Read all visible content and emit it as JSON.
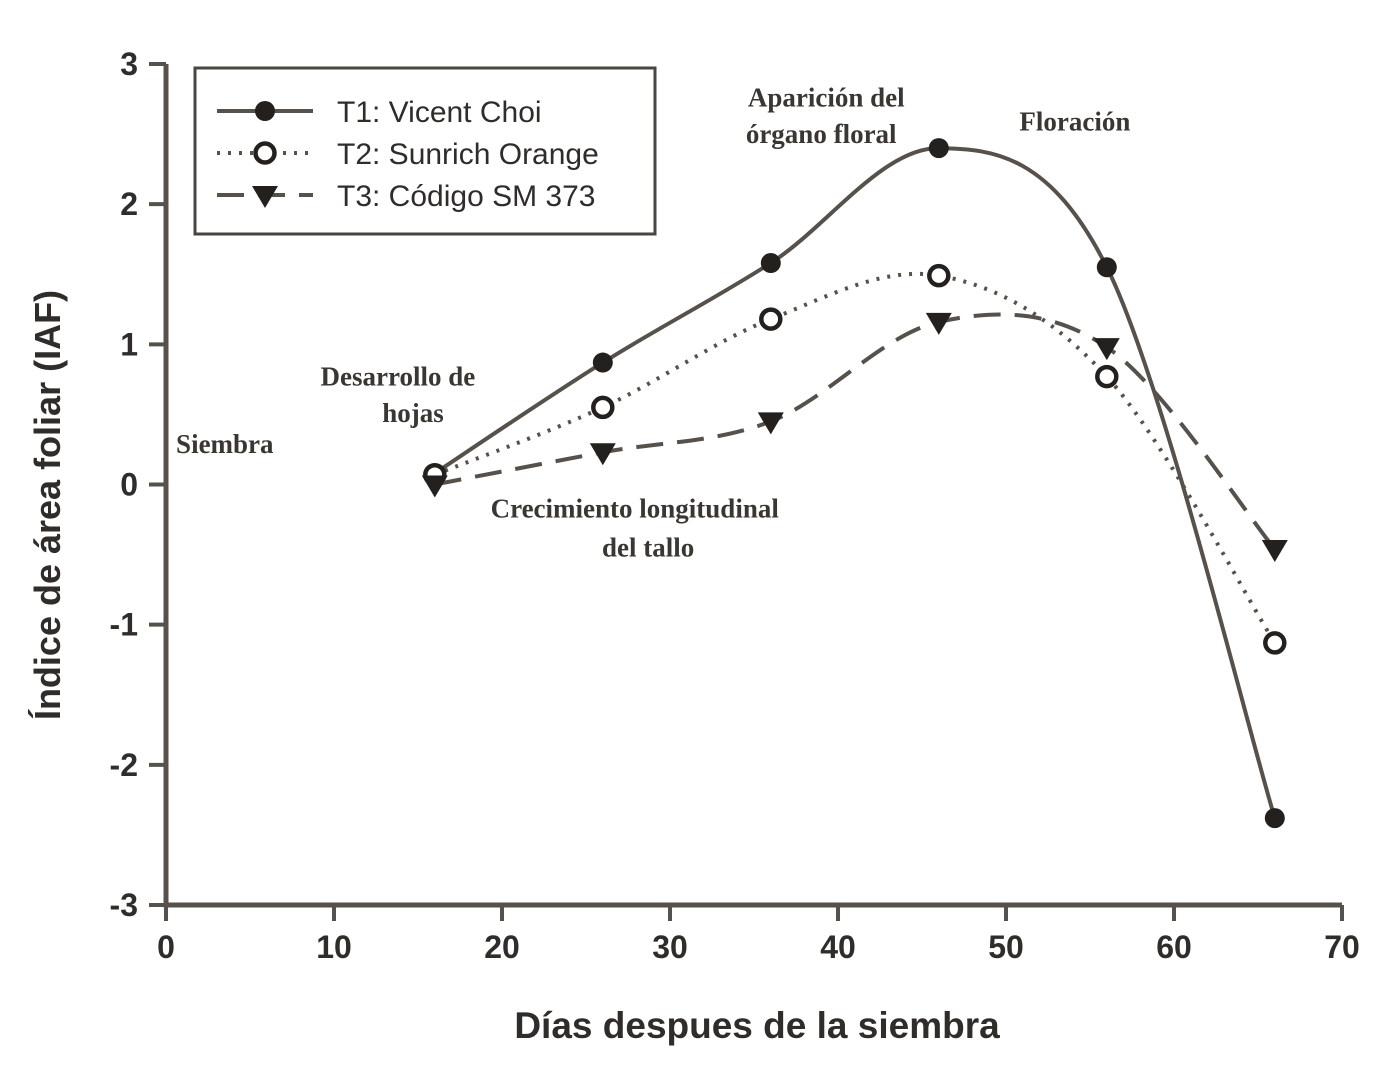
{
  "chart_data": {
    "type": "line",
    "title": "",
    "xlabel": "Días despues de la siembra",
    "ylabel": "Índice de área foliar (IAF)",
    "xlim": [
      0,
      70
    ],
    "ylim": [
      -3,
      3
    ],
    "xticks": [
      0,
      10,
      20,
      30,
      40,
      50,
      60,
      70
    ],
    "yticks": [
      3,
      2,
      1,
      0,
      -1,
      -2,
      -3
    ],
    "grid": false,
    "legend_position": "top-left",
    "x": [
      16,
      26,
      36,
      46,
      56,
      66
    ],
    "series": [
      {
        "id": "t1",
        "name": "T1: Vicent Choi",
        "line": "solid",
        "marker": "filled-circle",
        "values": [
          0.08,
          0.87,
          1.58,
          2.4,
          1.55,
          -2.38
        ]
      },
      {
        "id": "t2",
        "name": "T2: Sunrich Orange",
        "line": "dotted",
        "marker": "open-circle",
        "values": [
          0.07,
          0.55,
          1.18,
          1.49,
          0.77,
          -1.13
        ]
      },
      {
        "id": "t3",
        "name": "T3: Código SM 373",
        "line": "dashed",
        "marker": "filled-triangle-down",
        "values": [
          0.0,
          0.23,
          0.45,
          1.16,
          0.98,
          -0.46
        ]
      }
    ],
    "annotations": [
      {
        "id": "siembra",
        "text": "Siembra",
        "day": 3.5,
        "val": 0.29
      },
      {
        "id": "desarrollo-1",
        "text": "Desarrollo de",
        "day": 13.8,
        "val": 0.77
      },
      {
        "id": "desarrollo-2",
        "text": "hojas",
        "day": 14.7,
        "val": 0.51
      },
      {
        "id": "crecimiento-1",
        "text": "Crecimiento longitudinal",
        "day": 27.9,
        "val": -0.17
      },
      {
        "id": "crecimiento-2",
        "text": "del tallo",
        "day": 28.7,
        "val": -0.45
      },
      {
        "id": "aparicion-1",
        "text": "Aparición del",
        "day": 39.3,
        "val": 2.76
      },
      {
        "id": "aparicion-2",
        "text": "órgano floral",
        "day": 39.0,
        "val": 2.5
      },
      {
        "id": "floracion",
        "text": "Floración",
        "day": 54.1,
        "val": 2.59
      }
    ],
    "colors": {
      "line": "#57514b",
      "marker": "#23201d",
      "text": "#2f2c29",
      "annotation": "#3a3632",
      "axis": "#57514b",
      "legend_border": "#4a4540",
      "background": "#ffffff"
    }
  }
}
